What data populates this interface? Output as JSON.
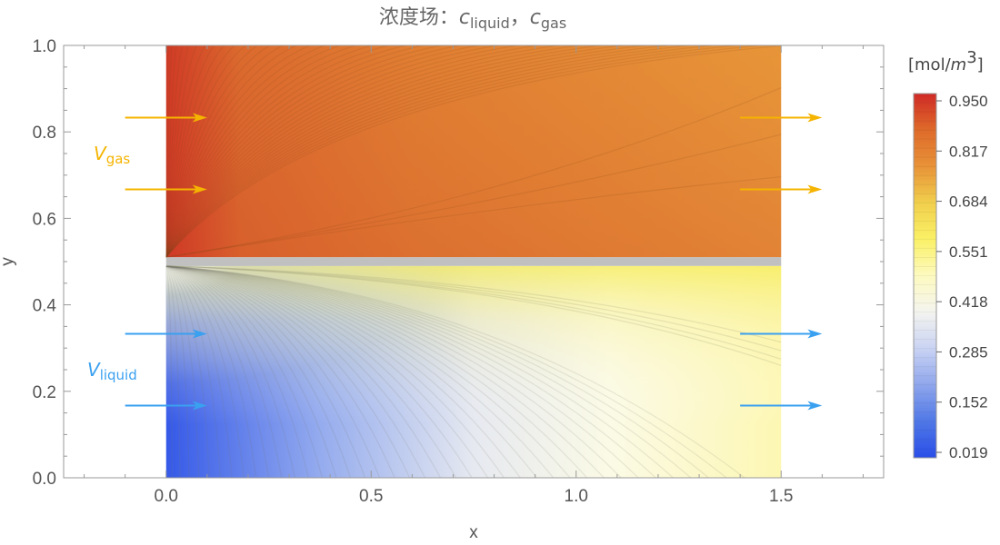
{
  "title": {
    "prefix": "浓度场：",
    "var1": "c",
    "sub1": "liquid",
    "sep": "，",
    "var2": "c",
    "sub2": "gas"
  },
  "chart_data": {
    "type": "heatmap",
    "xlabel": "x",
    "ylabel": "y",
    "xlim": [
      -0.25,
      1.75
    ],
    "ylim": [
      0,
      1
    ],
    "x_ticks": [
      "0.0",
      "0.5",
      "1.0",
      "1.5"
    ],
    "y_ticks": [
      "0.0",
      "0.2",
      "0.4",
      "0.6",
      "0.8",
      "1.0"
    ],
    "domain": {
      "x": [
        0,
        1.5
      ],
      "y": [
        0,
        1
      ]
    },
    "interface_y": [
      0.49,
      0.51
    ],
    "regions": [
      {
        "name": "gas",
        "y": [
          0.51,
          1.0
        ],
        "value_at_inlet": 0.95,
        "value_far_field": 0.84
      },
      {
        "name": "liquid",
        "y": [
          0.0,
          0.49
        ],
        "value_at_inlet": 0.019,
        "value_far_field": 0.68
      }
    ],
    "velocity_labels": {
      "gas": {
        "var": "V",
        "sub": "gas",
        "color": "#f5b400"
      },
      "liquid": {
        "var": "V",
        "sub": "liquid",
        "color": "#3aa0f0"
      }
    },
    "arrows": [
      {
        "phase": "gas",
        "x": [
          -0.1,
          0.1
        ],
        "y": 0.833
      },
      {
        "phase": "gas",
        "x": [
          -0.1,
          0.1
        ],
        "y": 0.667
      },
      {
        "phase": "liquid",
        "x": [
          -0.1,
          0.1
        ],
        "y": 0.333
      },
      {
        "phase": "liquid",
        "x": [
          -0.1,
          0.1
        ],
        "y": 0.167
      },
      {
        "phase": "gas",
        "x": [
          1.4,
          1.6
        ],
        "y": 0.833
      },
      {
        "phase": "gas",
        "x": [
          1.4,
          1.6
        ],
        "y": 0.667
      },
      {
        "phase": "liquid",
        "x": [
          1.4,
          1.6
        ],
        "y": 0.333
      },
      {
        "phase": "liquid",
        "x": [
          1.4,
          1.6
        ],
        "y": 0.167
      }
    ],
    "colorbar": {
      "unit_prefix": "[mol/",
      "unit_var": "m",
      "unit_exp": "3",
      "unit_suffix": "]",
      "min": 0.019,
      "max": 0.95,
      "ticks": [
        "0.950",
        "0.817",
        "0.684",
        "0.551",
        "0.418",
        "0.285",
        "0.152",
        "0.019"
      ],
      "stops": [
        "#2a4ee8",
        "#5078e6",
        "#8fa6ec",
        "#c9d3f3",
        "#f4f4ef",
        "#fdfac0",
        "#faf066",
        "#f1cf4d",
        "#e89338",
        "#de6a2a",
        "#d02a26"
      ]
    },
    "colors": {
      "interface": "#c0c0c0",
      "frame": "#999999",
      "gas_arrow": "#f5b400",
      "liquid_arrow": "#3aa0f0"
    }
  }
}
